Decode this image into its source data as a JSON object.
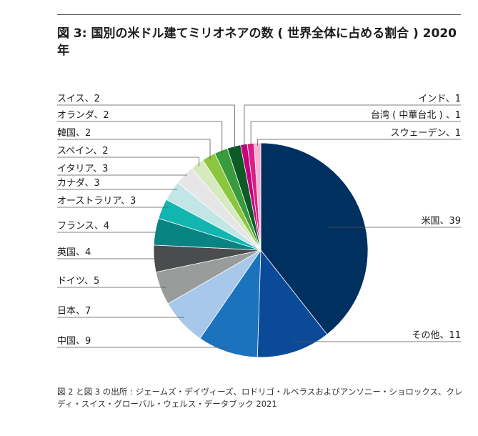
{
  "title": "図 3: 国別の米ドル建てミリオネアの数 ( 世界全体に占める割合 ) 2020 年",
  "source": "図 2 と図 3 の出所 : ジェームズ・デイヴィーズ、ロドリゴ・ルベラスおよびアンソニー・ショロックス、クレディ・スイス・グローバル・ウェルス・データブック 2021",
  "chart_data": {
    "type": "pie",
    "unit": "%",
    "slices": [
      {
        "name": "米国",
        "value": 39,
        "label": "米国、39",
        "color": "#00305f"
      },
      {
        "name": "その他",
        "value": 11,
        "label": "その他、11",
        "color": "#0b4a99"
      },
      {
        "name": "中国",
        "value": 9,
        "label": "中国、9",
        "color": "#1b72bd"
      },
      {
        "name": "日本",
        "value": 7,
        "label": "日本、7",
        "color": "#a7c8ea"
      },
      {
        "name": "ドイツ",
        "value": 5,
        "label": "ドイツ、5",
        "color": "#9a9b9b"
      },
      {
        "name": "英国",
        "value": 4,
        "label": "英国、4",
        "color": "#4a4c4e"
      },
      {
        "name": "フランス",
        "value": 4,
        "label": "フランス、4",
        "color": "#0a8483"
      },
      {
        "name": "オーストラリア",
        "value": 3,
        "label": "オーストラリア、3",
        "color": "#12b5b0"
      },
      {
        "name": "カナダ",
        "value": 3,
        "label": "カナダ、3",
        "color": "#c2e6e6"
      },
      {
        "name": "イタリア",
        "value": 3,
        "label": "イタリア、3",
        "color": "#e6e6e6"
      },
      {
        "name": "スペイン",
        "value": 2,
        "label": "スペイン、2",
        "color": "#d5eabf"
      },
      {
        "name": "韓国",
        "value": 2,
        "label": "韓国、2",
        "color": "#8cc63f"
      },
      {
        "name": "オランダ",
        "value": 2,
        "label": "オランダ、2",
        "color": "#3a9a3e"
      },
      {
        "name": "スイス",
        "value": 2,
        "label": "スイス、2",
        "color": "#0d5a27"
      },
      {
        "name": "インド",
        "value": 1,
        "label": "インド、1",
        "color": "#c4007d"
      },
      {
        "name": "台湾 ( 中華台北 )",
        "value": 1,
        "label": "台湾 ( 中華台北 ) 、1",
        "color": "#d81f85"
      },
      {
        "name": "スウェーデン",
        "value": 1,
        "label": "スウェーデン、1",
        "color": "#f7b2cf"
      }
    ]
  }
}
